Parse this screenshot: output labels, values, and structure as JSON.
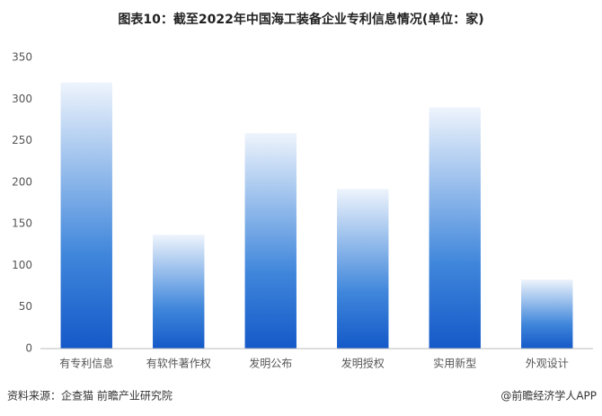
{
  "chart_data": {
    "type": "bar",
    "title": "图表10：截至2022年中国海工装备企业专利信息情况(单位：家)",
    "categories": [
      "有专利信息",
      "有软件著作权",
      "发明公布",
      "发明授权",
      "实用新型",
      "外观设计"
    ],
    "values": [
      320,
      137,
      259,
      192,
      290,
      83
    ],
    "color": "#1459c8",
    "ylim": [
      0,
      350
    ],
    "yticks": [
      0,
      50,
      100,
      150,
      200,
      250,
      300,
      350
    ],
    "grid": false,
    "source": "资料来源：企查猫 前瞻产业研究院",
    "credit": "@前瞻经济学人APP"
  }
}
